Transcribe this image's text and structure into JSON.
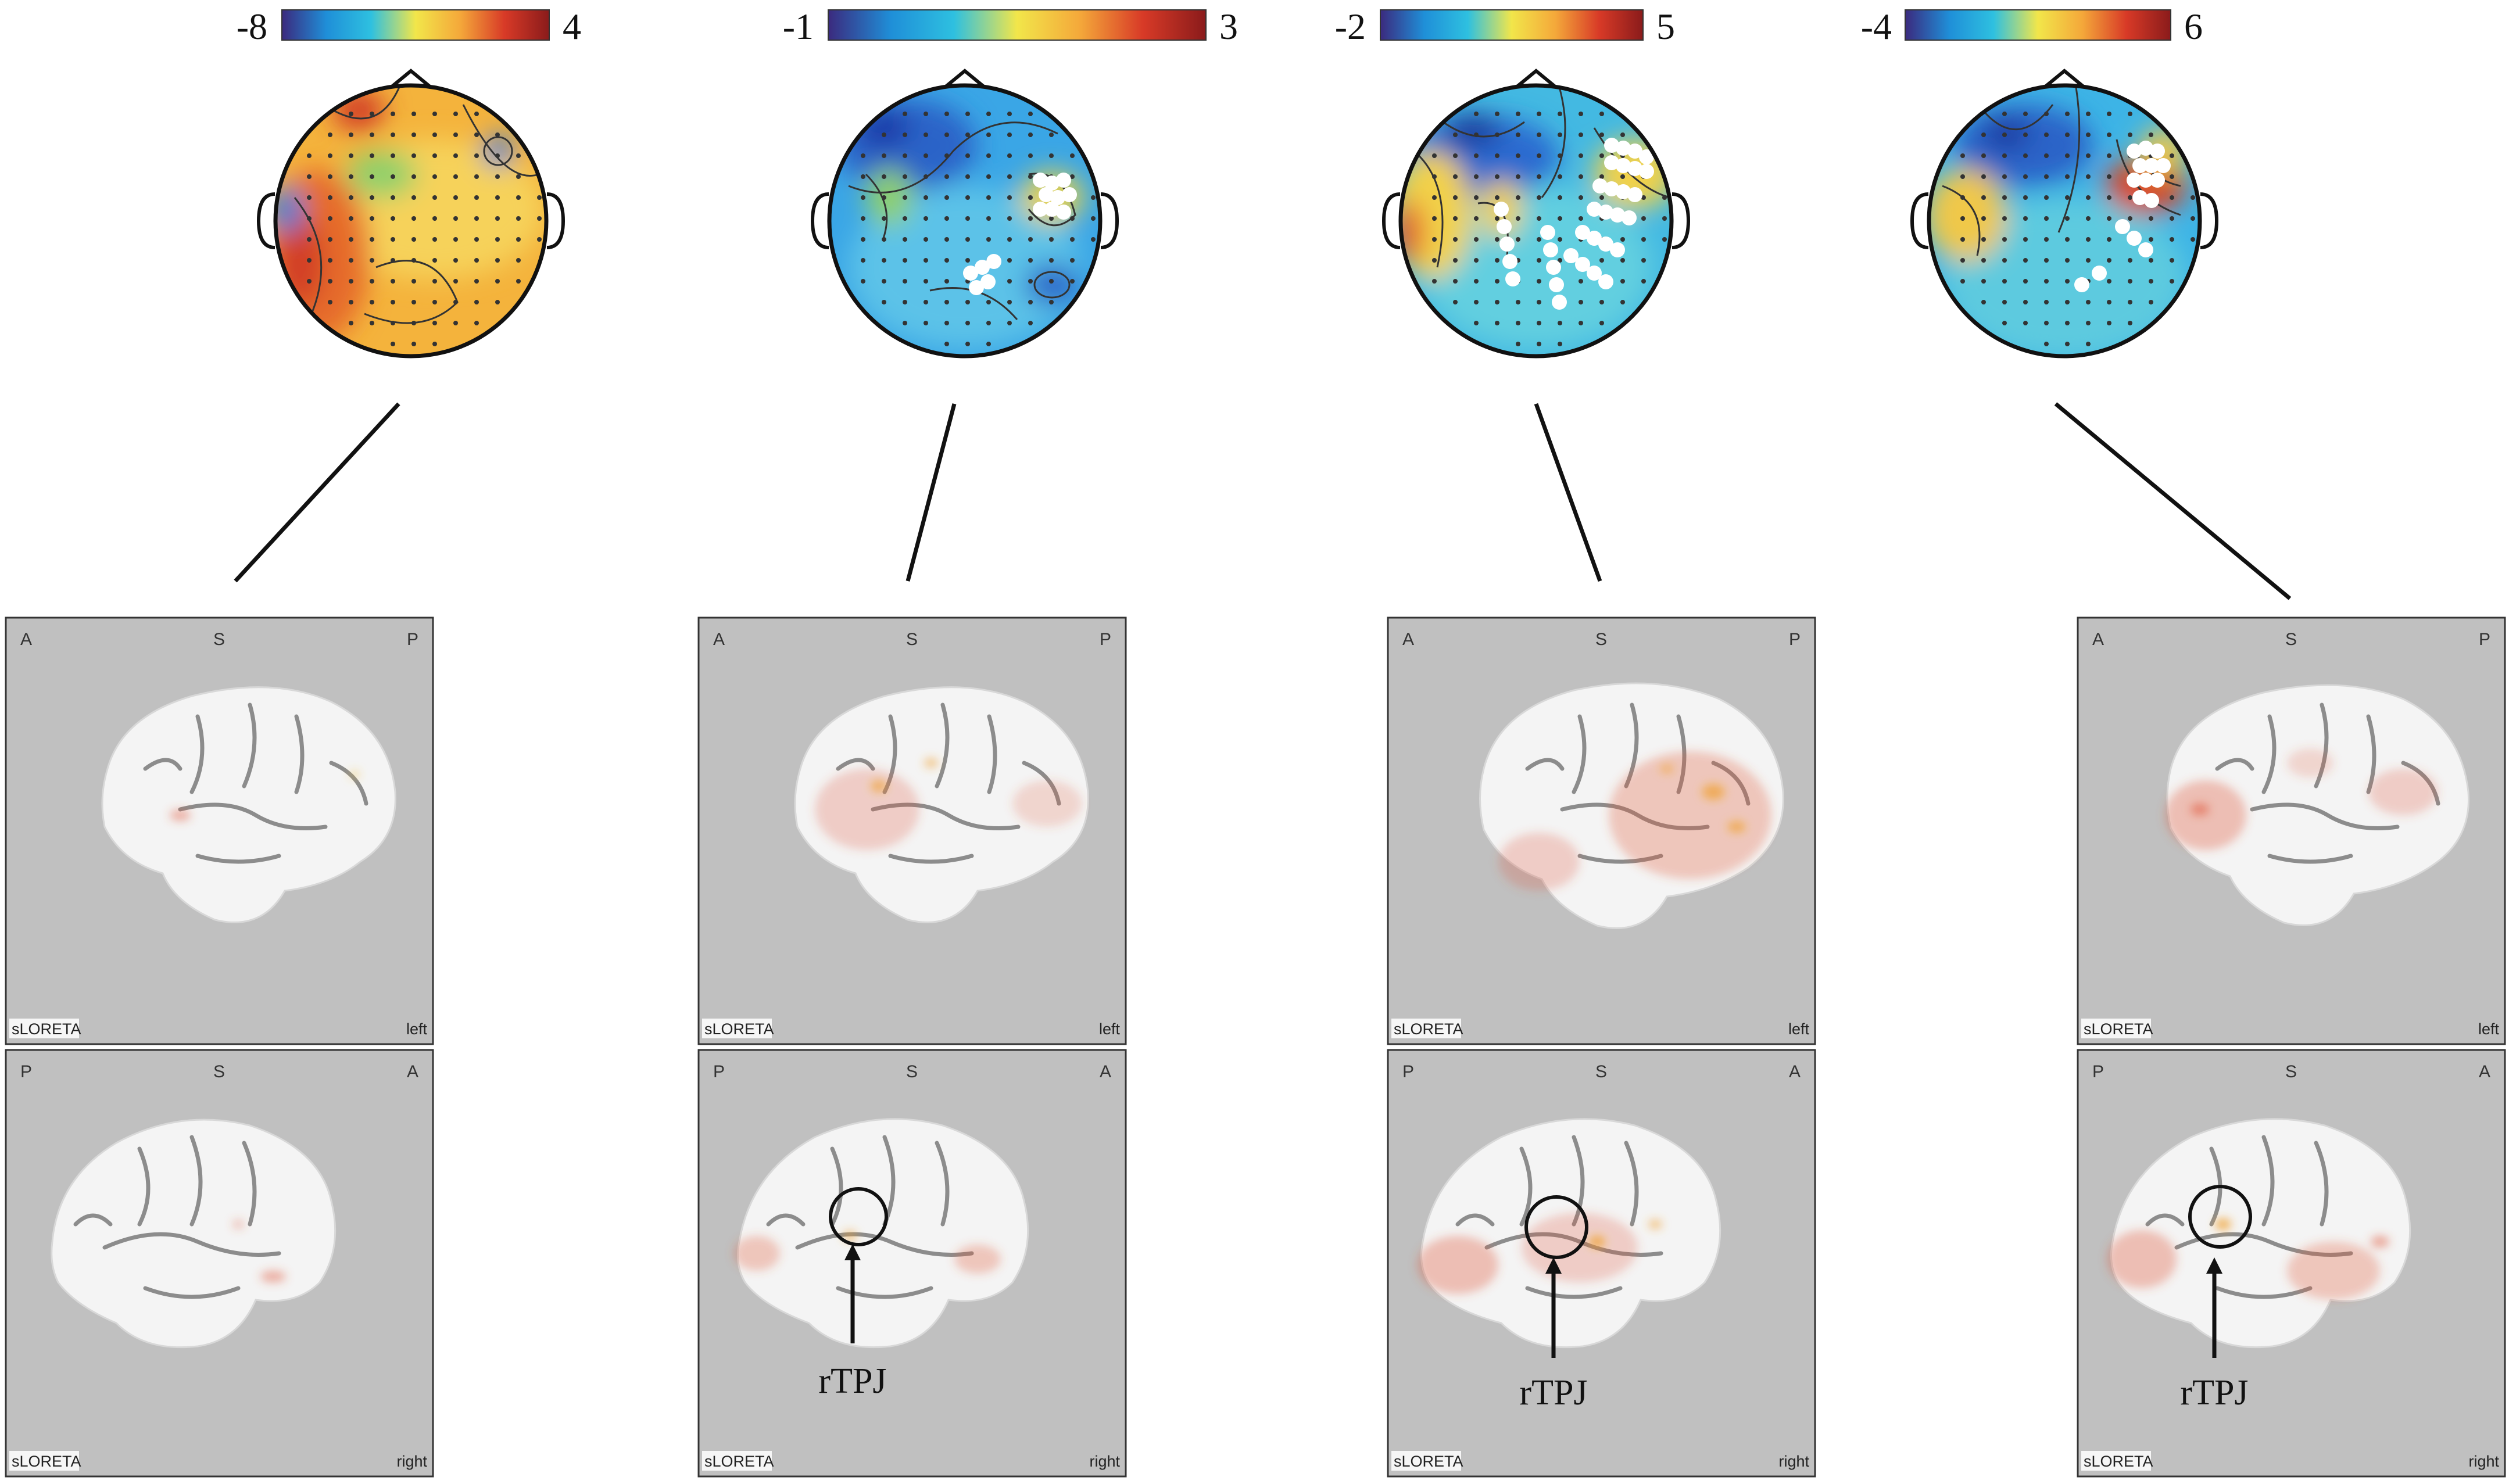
{
  "colorbar": {
    "stops": [
      "#3b2a7e",
      "#1f8fd8",
      "#2ec0e0",
      "#f2e64a",
      "#f4a83a",
      "#d83a27",
      "#8a1b1b"
    ]
  },
  "columns": [
    {
      "cb_min": "-8",
      "cb_max": "4",
      "map_colors": [
        "#f4b33c",
        "#f6d25a",
        "#e66c2c",
        "#d23c26",
        "#3b7fd6",
        "#8fd06a"
      ],
      "highlighted_electrodes": 0,
      "left_panel": {
        "top_left": "A",
        "top_mid": "S",
        "top_right": "P",
        "bottom_left": "sLORETA",
        "bottom_right": "left"
      },
      "right_panel": {
        "top_left": "P",
        "top_mid": "S",
        "top_right": "A",
        "bottom_left": "sLORETA",
        "bottom_right": "right"
      },
      "annotation": ""
    },
    {
      "cb_min": "-1",
      "cb_max": "3",
      "map_colors": [
        "#3aa6e6",
        "#5cc2e8",
        "#2a64c8",
        "#1a3aa8",
        "#e8d24a",
        "#8fd06a"
      ],
      "highlighted_electrodes": 14,
      "left_panel": {
        "top_left": "A",
        "top_mid": "S",
        "top_right": "P",
        "bottom_left": "sLORETA",
        "bottom_right": "left"
      },
      "right_panel": {
        "top_left": "P",
        "top_mid": "S",
        "top_right": "A",
        "bottom_left": "sLORETA",
        "bottom_right": "right"
      },
      "annotation": "rTPJ"
    },
    {
      "cb_min": "-2",
      "cb_max": "5",
      "map_colors": [
        "#43b9e2",
        "#62cfe0",
        "#2a6ad0",
        "#1c3e9e",
        "#f2d14a",
        "#e2522a"
      ],
      "highlighted_electrodes": 34,
      "left_panel": {
        "top_left": "A",
        "top_mid": "S",
        "top_right": "P",
        "bottom_left": "sLORETA",
        "bottom_right": "left"
      },
      "right_panel": {
        "top_left": "P",
        "top_mid": "S",
        "top_right": "A",
        "bottom_left": "sLORETA",
        "bottom_right": "right"
      },
      "annotation": "rTPJ"
    },
    {
      "cb_min": "-4",
      "cb_max": "6",
      "map_colors": [
        "#3db4e6",
        "#5dcadf",
        "#2a64c8",
        "#1c3aa0",
        "#f0c848",
        "#d84628"
      ],
      "highlighted_electrodes": 16,
      "left_panel": {
        "top_left": "A",
        "top_mid": "S",
        "top_right": "P",
        "bottom_left": "sLORETA",
        "bottom_right": "left"
      },
      "right_panel": {
        "top_left": "P",
        "top_mid": "S",
        "top_right": "A",
        "bottom_left": "sLORETA",
        "bottom_right": "right"
      },
      "annotation": "rTPJ"
    }
  ]
}
